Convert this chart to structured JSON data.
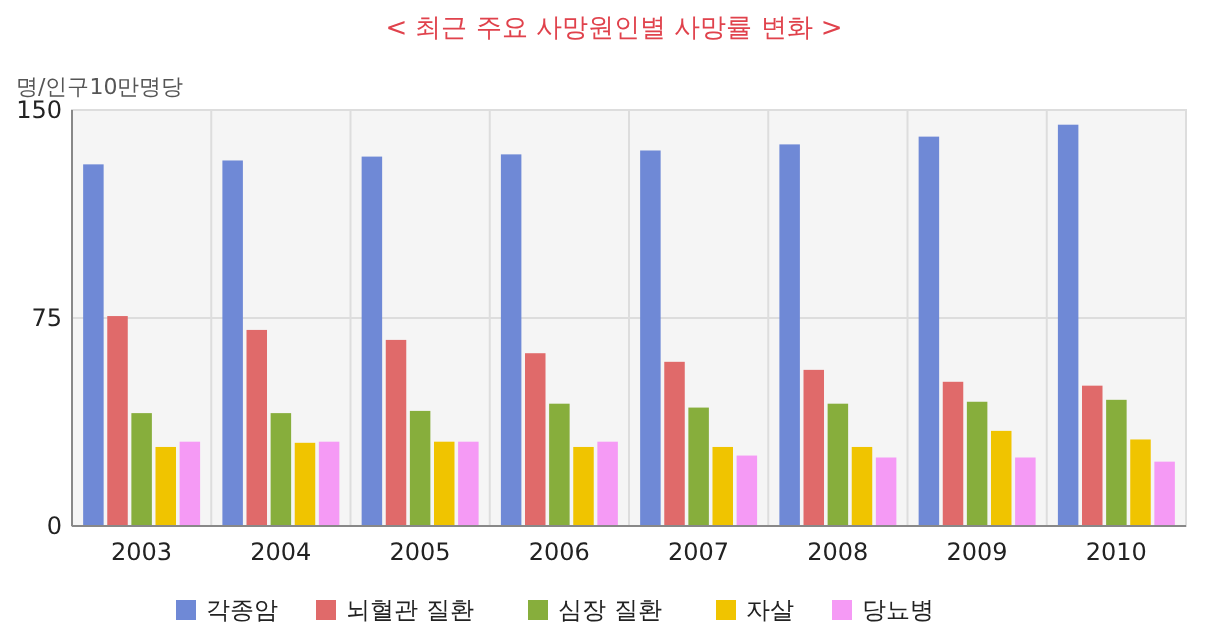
{
  "chart_data": {
    "type": "bar",
    "title": "< 최근 주요 사망원인별 사망률 변화 >",
    "ylabel": "명/인구10만명당",
    "categories": [
      "2003",
      "2004",
      "2005",
      "2006",
      "2007",
      "2008",
      "2009",
      "2010"
    ],
    "series": [
      {
        "name": "각종암",
        "color": "#6f89d6",
        "values": [
          130.4,
          131.8,
          133.2,
          134.0,
          135.4,
          137.6,
          140.4,
          144.7
        ]
      },
      {
        "name": "뇌혈관 질환",
        "color": "#e06a6a",
        "values": [
          75.7,
          70.7,
          67.1,
          62.3,
          59.2,
          56.3,
          52.0,
          50.6
        ]
      },
      {
        "name": "심장 질환",
        "color": "#87ae3c",
        "values": [
          40.7,
          40.7,
          41.5,
          44.1,
          42.7,
          44.1,
          44.8,
          45.5
        ]
      },
      {
        "name": "자살",
        "color": "#f0c400",
        "values": [
          28.5,
          30.0,
          30.4,
          28.5,
          28.5,
          28.5,
          34.3,
          31.2
        ]
      },
      {
        "name": "당뇨병",
        "color": "#f59af5",
        "values": [
          30.4,
          30.4,
          30.4,
          30.4,
          25.4,
          24.7,
          24.7,
          23.2
        ]
      }
    ],
    "ylim": [
      0,
      150
    ],
    "yticks": [
      0,
      75,
      150
    ],
    "grid": true,
    "legend": "bottom"
  }
}
